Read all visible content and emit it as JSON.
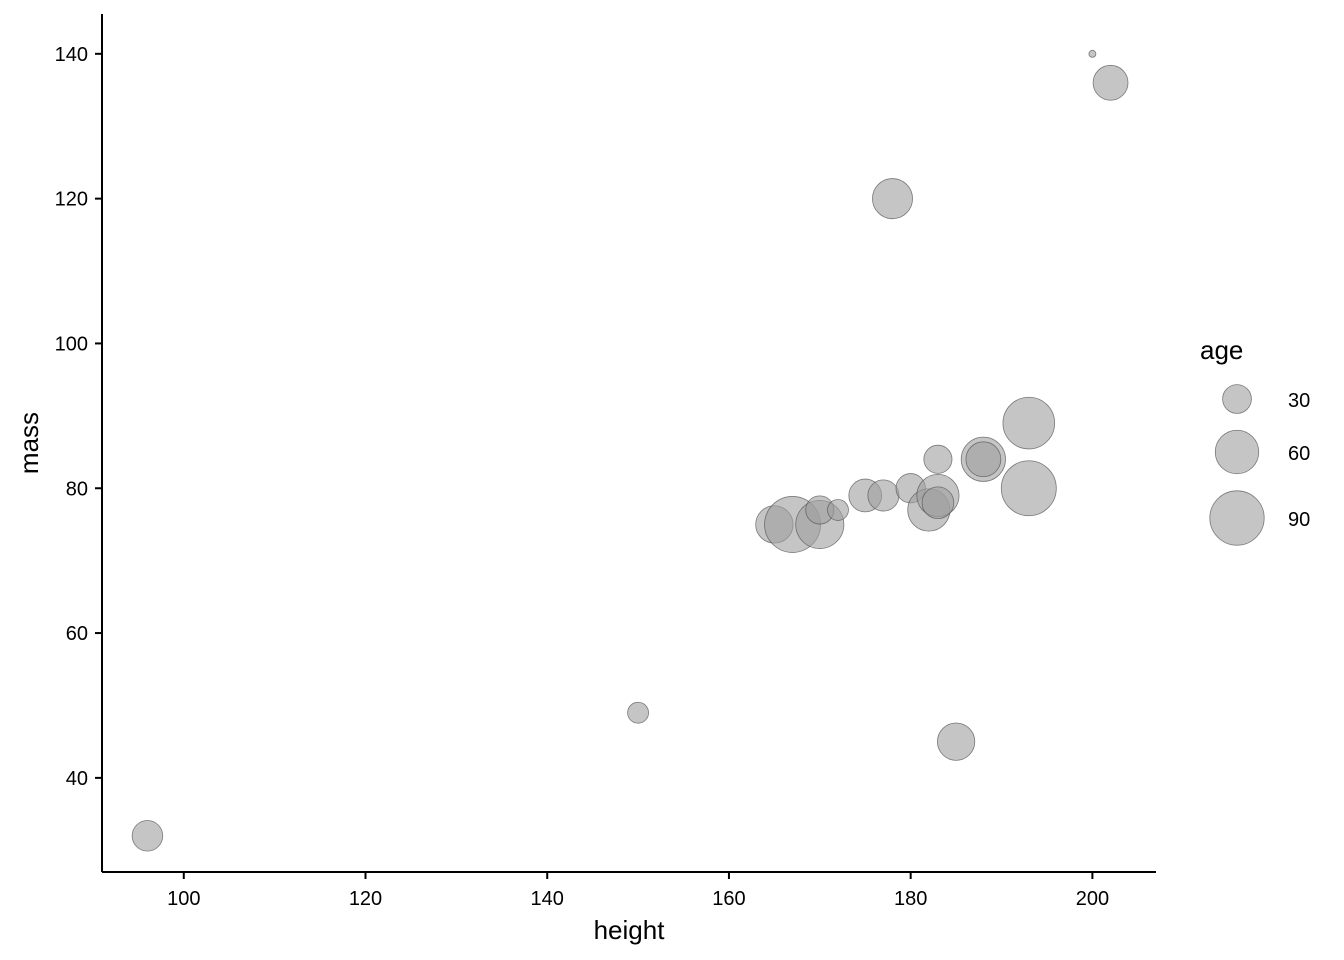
{
  "chart_data": {
    "type": "scatter",
    "title": "",
    "xlabel": "height",
    "ylabel": "mass",
    "xlim": [
      91,
      207
    ],
    "ylim": [
      27,
      145.5
    ],
    "x_ticks": [
      100,
      120,
      140,
      160,
      180,
      200
    ],
    "y_ticks": [
      40,
      60,
      80,
      100,
      120,
      140
    ],
    "x_tick_labels": [
      "100",
      "120",
      "140",
      "160",
      "180",
      "200"
    ],
    "y_tick_labels": [
      "40",
      "60",
      "80",
      "100",
      "120",
      "140"
    ],
    "grid": false,
    "point_color": "#9e9e9e",
    "point_fill_opacity": 0.6,
    "point_stroke": "#4d4d4d",
    "size_variable": "age",
    "size_range_age": [
      8,
      95
    ],
    "legend": {
      "title": "age",
      "position": "right",
      "entries": [
        {
          "label": "30",
          "value": 30
        },
        {
          "label": "60",
          "value": 60
        },
        {
          "label": "90",
          "value": 90
        }
      ]
    },
    "points": [
      {
        "x": 96,
        "y": 32,
        "age": 33
      },
      {
        "x": 150,
        "y": 49,
        "age": 19
      },
      {
        "x": 185,
        "y": 45,
        "age": 46
      },
      {
        "x": 178,
        "y": 120,
        "age": 52
      },
      {
        "x": 202,
        "y": 136,
        "age": 41
      },
      {
        "x": 200,
        "y": 140,
        "age": 8
      },
      {
        "x": 165,
        "y": 75,
        "age": 46
      },
      {
        "x": 167,
        "y": 75,
        "age": 95
      },
      {
        "x": 170,
        "y": 75,
        "age": 72
      },
      {
        "x": 170,
        "y": 77,
        "age": 29
      },
      {
        "x": 172,
        "y": 77,
        "age": 19
      },
      {
        "x": 175,
        "y": 79,
        "age": 37
      },
      {
        "x": 177,
        "y": 79,
        "age": 34
      },
      {
        "x": 180,
        "y": 80,
        "age": 31
      },
      {
        "x": 182,
        "y": 77,
        "age": 57
      },
      {
        "x": 183,
        "y": 79,
        "age": 57
      },
      {
        "x": 183,
        "y": 78,
        "age": 35
      },
      {
        "x": 183,
        "y": 84,
        "age": 29
      },
      {
        "x": 188,
        "y": 84,
        "age": 62
      },
      {
        "x": 188,
        "y": 84,
        "age": 41
      },
      {
        "x": 193,
        "y": 89,
        "age": 82
      },
      {
        "x": 193,
        "y": 80,
        "age": 92
      }
    ]
  }
}
